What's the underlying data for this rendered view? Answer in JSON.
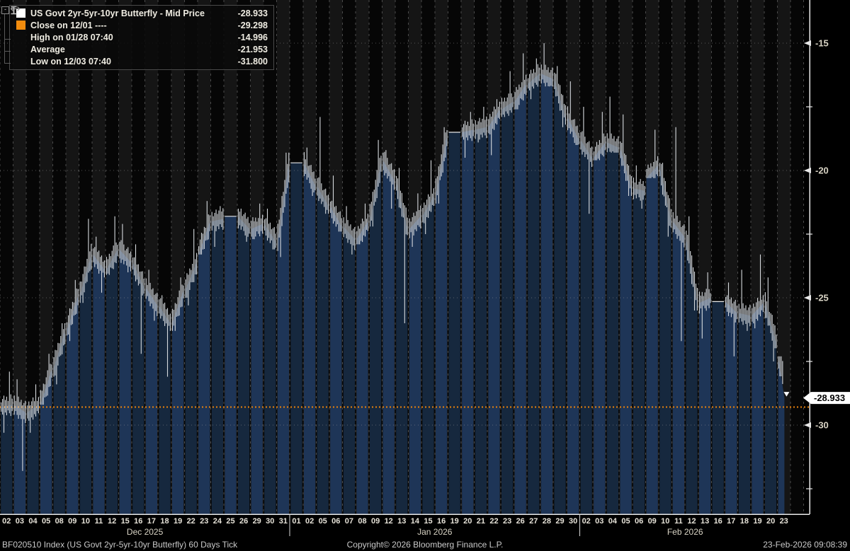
{
  "legend": {
    "collapse_glyph": "-",
    "rows": [
      {
        "icon": "white-square",
        "label": "US Govt 2yr-5yr-10yr Butterfly - Mid Price",
        "value": "-28.933"
      },
      {
        "icon": "orange-square",
        "label": "Close on 12/01 ----",
        "value": "-29.298"
      },
      {
        "icon": "high-marker",
        "label": "High on 01/28 07:40",
        "value": "-14.996"
      },
      {
        "icon": "average-marker",
        "label": "Average",
        "value": "-21.953"
      },
      {
        "icon": "low-marker",
        "label": "Low on 12/03 07:40",
        "value": "-31.800"
      }
    ]
  },
  "footer": {
    "left": "BF020510 Index (US Govt 2yr-5yr-10yr Butterfly) 60 Days Tick",
    "center": "Copyright© 2026 Bloomberg Finance L.P.",
    "right": "23-Feb-2026 09:08:39"
  },
  "colors": {
    "bar_dark": "#16283e",
    "bar_light": "#1e3557",
    "wick": "#d6dade",
    "close_line": "#e8820c",
    "accent_orange": "#f28c0e",
    "stripe_dark": "#060606",
    "stripe_light": "#151515",
    "grid_dash": "#4a4a4a",
    "grid_dot": "#9a9a9a",
    "axis": "#e8e8e8",
    "axis_text": "#d8d3c4",
    "date_text": "#e6e2d8",
    "tag_bg": "#ffffff",
    "tag_text": "#000000"
  },
  "chart_data": {
    "type": "bar",
    "style": "hlc-intraday-tick-bars",
    "title": "US Govt 2yr-5yr-10yr Butterfly - Mid Price",
    "ylim": [
      -33.6,
      -13.3
    ],
    "y_ticks_major": [
      -15,
      -20,
      -25,
      -30
    ],
    "y_ticks_minor": [
      -17.5,
      -22.5,
      -27.5,
      -32.5
    ],
    "close_line_value": -29.298,
    "open_start": -29.298,
    "last_price": -28.933,
    "last_price_label": "-28.933",
    "high_marker": {
      "value": -14.996,
      "day_index": 41
    },
    "low_marker": {
      "value": -31.8,
      "day_index": 1
    },
    "average": -21.953,
    "legend_position": "top-left",
    "months": [
      {
        "label": "Dec 2025"
      },
      {
        "label": "Jan 2026"
      },
      {
        "label": "Feb 2026"
      }
    ],
    "days": [
      {
        "m": 0,
        "date": "02",
        "high": -27.9,
        "low": -30.3,
        "close": -29.2
      },
      {
        "m": 0,
        "date": "03",
        "high": -28.2,
        "low": -31.8,
        "close": -29.5
      },
      {
        "m": 0,
        "date": "04",
        "high": -28.4,
        "low": -30.3,
        "close": -29.2
      },
      {
        "m": 0,
        "date": "05",
        "high": -27.2,
        "low": -29.2,
        "close": -27.8
      },
      {
        "m": 0,
        "date": "08",
        "high": -26.0,
        "low": -28.4,
        "close": -26.3
      },
      {
        "m": 0,
        "date": "09",
        "high": -24.3,
        "low": -26.7,
        "close": -24.9
      },
      {
        "m": 0,
        "date": "10",
        "high": -21.9,
        "low": -25.2,
        "close": -23.3
      },
      {
        "m": 0,
        "date": "11",
        "high": -22.6,
        "low": -24.8,
        "close": -23.9
      },
      {
        "m": 0,
        "date": "12",
        "high": -21.8,
        "low": -24.1,
        "close": -23.1
      },
      {
        "m": 0,
        "date": "15",
        "high": -22.1,
        "low": -24.0,
        "close": -23.6
      },
      {
        "m": 0,
        "date": "16",
        "high": -22.9,
        "low": -27.2,
        "close": -24.6
      },
      {
        "m": 0,
        "date": "17",
        "high": -23.9,
        "low": -25.9,
        "close": -25.3
      },
      {
        "m": 0,
        "date": "18",
        "high": -24.9,
        "low": -28.1,
        "close": -26.0
      },
      {
        "m": 0,
        "date": "19",
        "high": -24.2,
        "low": -26.3,
        "close": -24.7
      },
      {
        "m": 0,
        "date": "22",
        "high": -22.3,
        "low": -25.3,
        "close": -23.6
      },
      {
        "m": 0,
        "date": "23",
        "high": -21.2,
        "low": -23.3,
        "close": -22.0
      },
      {
        "m": 0,
        "date": "24",
        "high": -21.4,
        "low": -23.0,
        "close": -21.9
      },
      {
        "m": 0,
        "date": "25",
        "high": -21.8,
        "low": -21.8,
        "close": -21.8
      },
      {
        "m": 0,
        "date": "26",
        "high": -21.5,
        "low": -22.8,
        "close": -22.3
      },
      {
        "m": 0,
        "date": "29",
        "high": -21.3,
        "low": -22.7,
        "close": -22.1
      },
      {
        "m": 0,
        "date": "30",
        "high": -21.5,
        "low": -23.1,
        "close": -22.8
      },
      {
        "m": 0,
        "date": "31",
        "high": -19.3,
        "low": -23.4,
        "close": -19.7
      },
      {
        "m": 1,
        "date": "01",
        "high": -19.7,
        "low": -19.7,
        "close": -19.7
      },
      {
        "m": 1,
        "date": "02",
        "high": -19.1,
        "low": -21.0,
        "close": -20.6
      },
      {
        "m": 1,
        "date": "05",
        "high": -17.9,
        "low": -21.7,
        "close": -21.4
      },
      {
        "m": 1,
        "date": "06",
        "high": -20.2,
        "low": -22.4,
        "close": -22.2
      },
      {
        "m": 1,
        "date": "07",
        "high": -21.4,
        "low": -23.3,
        "close": -22.7
      },
      {
        "m": 1,
        "date": "08",
        "high": -21.3,
        "low": -22.9,
        "close": -22.0
      },
      {
        "m": 1,
        "date": "09",
        "high": -18.8,
        "low": -22.2,
        "close": -19.6
      },
      {
        "m": 1,
        "date": "12",
        "high": -19.2,
        "low": -21.5,
        "close": -20.4
      },
      {
        "m": 1,
        "date": "13",
        "high": -19.9,
        "low": -26.0,
        "close": -22.3
      },
      {
        "m": 1,
        "date": "14",
        "high": -20.9,
        "low": -23.0,
        "close": -21.8
      },
      {
        "m": 1,
        "date": "15",
        "high": -19.6,
        "low": -22.5,
        "close": -21.0
      },
      {
        "m": 1,
        "date": "16",
        "high": -18.3,
        "low": -21.3,
        "close": -18.6
      },
      {
        "m": 1,
        "date": "19",
        "high": -18.5,
        "low": -18.5,
        "close": -18.5
      },
      {
        "m": 1,
        "date": "20",
        "high": -17.7,
        "low": -19.5,
        "close": -18.4
      },
      {
        "m": 1,
        "date": "21",
        "high": -17.5,
        "low": -18.9,
        "close": -18.3
      },
      {
        "m": 1,
        "date": "22",
        "high": -17.2,
        "low": -19.4,
        "close": -17.6
      },
      {
        "m": 1,
        "date": "23",
        "high": -16.1,
        "low": -17.9,
        "close": -17.3
      },
      {
        "m": 1,
        "date": "26",
        "high": -15.4,
        "low": -17.6,
        "close": -16.6
      },
      {
        "m": 1,
        "date": "27",
        "high": -15.6,
        "low": -17.2,
        "close": -16.2
      },
      {
        "m": 1,
        "date": "28",
        "high": -14.996,
        "low": -16.7,
        "close": -16.4
      },
      {
        "m": 1,
        "date": "29",
        "high": -15.9,
        "low": -18.3,
        "close": -17.9
      },
      {
        "m": 1,
        "date": "30",
        "high": -16.5,
        "low": -19.0,
        "close": -18.8
      },
      {
        "m": 2,
        "date": "02",
        "high": -17.5,
        "low": -21.7,
        "close": -19.5
      },
      {
        "m": 2,
        "date": "03",
        "high": -17.7,
        "low": -19.6,
        "close": -18.9
      },
      {
        "m": 2,
        "date": "04",
        "high": -17.1,
        "low": -19.3,
        "close": -19.1
      },
      {
        "m": 2,
        "date": "05",
        "high": -17.8,
        "low": -21.0,
        "close": -20.7
      },
      {
        "m": 2,
        "date": "06",
        "high": -19.8,
        "low": -21.5,
        "close": -20.8
      },
      {
        "m": 2,
        "date": "09",
        "high": -18.4,
        "low": -20.3,
        "close": -19.8
      },
      {
        "m": 2,
        "date": "10",
        "high": -19.7,
        "low": -22.6,
        "close": -22.0
      },
      {
        "m": 2,
        "date": "11",
        "high": -18.3,
        "low": -26.7,
        "close": -22.6
      },
      {
        "m": 2,
        "date": "12",
        "high": -21.8,
        "low": -25.5,
        "close": -25.2
      },
      {
        "m": 2,
        "date": "13",
        "high": -24.0,
        "low": -26.6,
        "close": -25.0
      },
      {
        "m": 2,
        "date": "16",
        "high": -25.15,
        "low": -25.15,
        "close": -25.15
      },
      {
        "m": 2,
        "date": "17",
        "high": -24.4,
        "low": -27.3,
        "close": -25.6
      },
      {
        "m": 2,
        "date": "18",
        "high": -23.9,
        "low": -26.3,
        "close": -25.7
      },
      {
        "m": 2,
        "date": "19",
        "high": -23.3,
        "low": -26.2,
        "close": -25.2
      },
      {
        "m": 2,
        "date": "20",
        "high": -24.2,
        "low": -27.5,
        "close": -26.8
      },
      {
        "m": 2,
        "date": "23",
        "high": -27.3,
        "low": -29.1,
        "close": -28.933
      }
    ]
  }
}
